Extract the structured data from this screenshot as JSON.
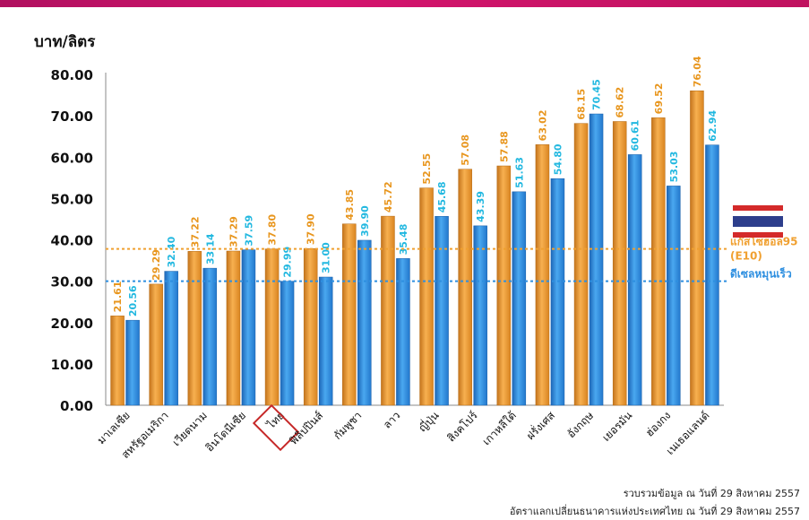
{
  "chart_data": {
    "type": "bar",
    "ylabel": "บาท/ลิตร",
    "ylim": [
      0,
      80
    ],
    "yticks": [
      "0.00",
      "10.00",
      "20.00",
      "30.00",
      "40.00",
      "50.00",
      "60.00",
      "70.00",
      "80.00"
    ],
    "grid": false,
    "categories": [
      "มาเลเซีย",
      "สหรัฐอเมริกา",
      "เวียดนาม",
      "อินโดนีเซีย",
      "ไทย",
      "ฟิลิปปินส์",
      "กัมพูชา",
      "ลาว",
      "ญี่ปุ่น",
      "สิงคโปร์",
      "เกาหลีใต้",
      "ฝรั่งเศส",
      "อังกฤษ",
      "เยอรมัน",
      "ฮ่องกง",
      "เนเธอแลนด์"
    ],
    "highlight_category": "ไทย",
    "series": [
      {
        "name": "แก๊สโซฮอล95 (E10)",
        "color": "#f0a030",
        "label_color": "#e8961e",
        "values": [
          21.61,
          29.29,
          37.22,
          37.29,
          37.8,
          37.9,
          43.85,
          45.72,
          52.55,
          57.08,
          57.88,
          63.02,
          68.15,
          68.62,
          69.52,
          76.04
        ],
        "labels": [
          "21.61",
          "29.29",
          "37.22",
          "37.29",
          "37.80",
          "37.90",
          "43.85",
          "45.72",
          "52.55",
          "57.08",
          "57.88",
          "63.02",
          "68.15",
          "68.62",
          "69.52",
          "76.04"
        ]
      },
      {
        "name": "ดีเซลหมุนเร็ว",
        "color": "#2e8fe0",
        "label_color": "#22b8e0",
        "values": [
          20.56,
          32.4,
          33.14,
          37.59,
          29.99,
          31.0,
          39.9,
          35.48,
          45.68,
          43.39,
          51.63,
          54.8,
          70.45,
          60.61,
          53.03,
          62.94
        ],
        "labels": [
          "20.56",
          "32.40",
          "33.14",
          "37.59",
          "29.99",
          "31.00",
          "39.90",
          "35.48",
          "45.68",
          "43.39",
          "51.63",
          "54.80",
          "70.45",
          "60.61",
          "53.03",
          "62.94"
        ]
      }
    ],
    "reference_lines": [
      {
        "value": 37.8,
        "color": "#f0a030",
        "label_lines": [
          "แก๊สโซฮอล95",
          "(E10)"
        ]
      },
      {
        "value": 29.99,
        "color": "#2e8fe0",
        "label_lines": [
          "ดีเซลหมุนเร็ว"
        ]
      }
    ],
    "flag": "thai-flag"
  },
  "notes": {
    "line1": "รวบรวมข้อมูล ณ วันที่ 29 สิงหาคม 2557",
    "line2": "อัตราแลกเปลี่ยนธนาคารแห่งประเทศไทย ณ วันที่ 29 สิงหาคม 2557"
  }
}
